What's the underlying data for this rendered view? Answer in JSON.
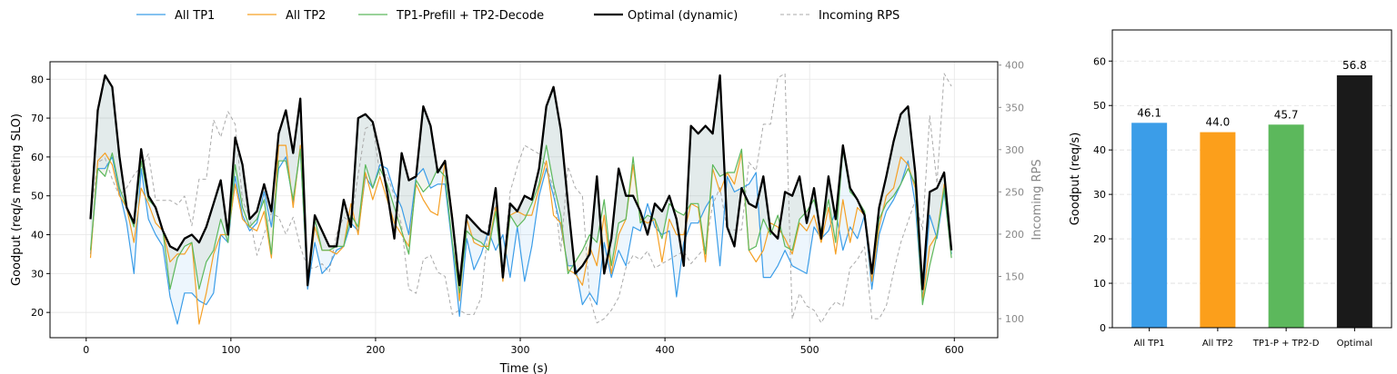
{
  "chart_data": [
    {
      "type": "line",
      "xlabel": "Time (s)",
      "ylabel": "Goodput (req/s meeting SLO)",
      "y2label": "Incoming RPS",
      "xlim": [
        -25,
        630
      ],
      "ylim": [
        13.5,
        84.5
      ],
      "y2lim": [
        77.5,
        404
      ],
      "xticks": [
        0,
        100,
        200,
        300,
        400,
        500,
        600
      ],
      "yticks": [
        20,
        30,
        40,
        50,
        60,
        70,
        80
      ],
      "y2ticks": [
        100,
        150,
        200,
        250,
        300,
        350,
        400
      ],
      "grid": true,
      "legend": "top-outside",
      "x": [
        3,
        8,
        13,
        18,
        23,
        28,
        33,
        38,
        43,
        48,
        53,
        58,
        63,
        68,
        73,
        78,
        83,
        88,
        93,
        98,
        103,
        108,
        113,
        118,
        123,
        128,
        133,
        138,
        143,
        148,
        153,
        158,
        163,
        168,
        173,
        178,
        183,
        188,
        193,
        198,
        203,
        208,
        213,
        218,
        223,
        228,
        233,
        238,
        243,
        248,
        253,
        258,
        263,
        268,
        273,
        278,
        283,
        288,
        293,
        298,
        303,
        308,
        313,
        318,
        323,
        328,
        333,
        338,
        343,
        348,
        353,
        358,
        363,
        368,
        373,
        378,
        383,
        388,
        393,
        398,
        403,
        408,
        413,
        418,
        423,
        428,
        433,
        438,
        443,
        448,
        453,
        458,
        463,
        468,
        473,
        478,
        483,
        488,
        493,
        498,
        503,
        508,
        513,
        518,
        523,
        528,
        533,
        538,
        543,
        548,
        553,
        558,
        563,
        568,
        573,
        578,
        583,
        588,
        593,
        598
      ],
      "series": [
        {
          "name": "All TP1",
          "color": "#3b9de8",
          "width": 1.2,
          "values": [
            35,
            57,
            57,
            60,
            51,
            43,
            30,
            57,
            44,
            40,
            37,
            24,
            17,
            25,
            25,
            23,
            22,
            25,
            40,
            38,
            55,
            45,
            41,
            43,
            51,
            42,
            57,
            60,
            48,
            62,
            26,
            38,
            30,
            32,
            36,
            37,
            43,
            41,
            55,
            52,
            58,
            57,
            51,
            47,
            40,
            55,
            57,
            52,
            53,
            53,
            37,
            19,
            39,
            31,
            35,
            41,
            36,
            40,
            29,
            42,
            28,
            37,
            50,
            57,
            50,
            42,
            32,
            32,
            22,
            25,
            22,
            38,
            29,
            36,
            32,
            42,
            41,
            48,
            42,
            40,
            41,
            24,
            38,
            43,
            43,
            47,
            50,
            32,
            55,
            51,
            52,
            53,
            56,
            29,
            29,
            32,
            36,
            32,
            31,
            30,
            42,
            39,
            41,
            46,
            36,
            42,
            39,
            45,
            26,
            40,
            46,
            49,
            53,
            59,
            48,
            23,
            45,
            39,
            51,
            35
          ]
        },
        {
          "name": "All TP2",
          "color": "#f5a025",
          "width": 1.2,
          "values": [
            34,
            59,
            61,
            58,
            50,
            47,
            38,
            52,
            48,
            43,
            41,
            33,
            35,
            35,
            38,
            17,
            25,
            35,
            40,
            40,
            53,
            44,
            42,
            41,
            46,
            34,
            63,
            63,
            47,
            63,
            27,
            42,
            36,
            36,
            35,
            37,
            48,
            40,
            56,
            49,
            55,
            49,
            43,
            40,
            37,
            53,
            49,
            46,
            45,
            59,
            45,
            23,
            44,
            38,
            37,
            37,
            47,
            28,
            45,
            46,
            45,
            45,
            52,
            59,
            45,
            43,
            31,
            30,
            27,
            37,
            32,
            45,
            30,
            40,
            44,
            58,
            44,
            43,
            44,
            33,
            44,
            40,
            40,
            48,
            47,
            33,
            57,
            51,
            56,
            53,
            61,
            36,
            33,
            36,
            43,
            42,
            39,
            35,
            43,
            41,
            45,
            38,
            47,
            35,
            49,
            38,
            47,
            45,
            28,
            42,
            50,
            52,
            60,
            58,
            52,
            23,
            37,
            40,
            53,
            36
          ]
        },
        {
          "name": "TP1-Prefill + TP2-Decode",
          "color": "#5cb85c",
          "width": 1.2,
          "values": [
            36,
            57,
            55,
            61,
            52,
            47,
            42,
            59,
            49,
            47,
            41,
            26,
            34,
            37,
            38,
            26,
            33,
            36,
            44,
            38,
            58,
            47,
            42,
            44,
            49,
            35,
            59,
            59,
            49,
            62,
            28,
            44,
            36,
            36,
            37,
            37,
            45,
            42,
            58,
            52,
            57,
            53,
            47,
            41,
            35,
            54,
            51,
            53,
            57,
            55,
            38,
            25,
            41,
            39,
            38,
            36,
            46,
            29,
            45,
            42,
            44,
            48,
            53,
            63,
            53,
            45,
            30,
            33,
            36,
            40,
            38,
            49,
            32,
            43,
            44,
            60,
            43,
            45,
            44,
            39,
            48,
            46,
            45,
            48,
            48,
            35,
            58,
            55,
            56,
            56,
            62,
            36,
            37,
            44,
            40,
            45,
            37,
            36,
            44,
            46,
            49,
            41,
            49,
            38,
            62,
            51,
            49,
            46,
            30,
            44,
            48,
            50,
            53,
            57,
            53,
            22,
            32,
            40,
            52,
            34
          ]
        },
        {
          "name": "Optimal (dynamic)",
          "color": "#000000",
          "width": 2.3,
          "values": [
            44,
            72,
            81,
            78,
            60,
            47,
            43,
            62,
            50,
            47,
            41,
            37,
            36,
            39,
            40,
            38,
            42,
            48,
            54,
            40,
            65,
            58,
            44,
            46,
            53,
            46,
            66,
            72,
            61,
            75,
            27,
            45,
            41,
            37,
            37,
            49,
            42,
            70,
            71,
            69,
            61,
            51,
            39,
            61,
            54,
            55,
            73,
            68,
            56,
            59,
            44,
            27,
            45,
            43,
            41,
            40,
            52,
            29,
            48,
            46,
            50,
            49,
            57,
            73,
            78,
            67,
            48,
            30,
            32,
            35,
            55,
            30,
            39,
            57,
            50,
            50,
            46,
            40,
            48,
            46,
            50,
            44,
            32,
            68,
            66,
            68,
            66,
            81,
            42,
            37,
            52,
            48,
            47,
            55,
            41,
            39,
            51,
            50,
            55,
            43,
            52,
            39,
            55,
            44,
            63,
            52,
            49,
            45,
            30,
            47,
            55,
            64,
            71,
            73,
            56,
            26,
            51,
            52,
            56,
            36
          ]
        },
        {
          "name": "Incoming RPS",
          "color": "#aaaaaa",
          "width": 1.0,
          "dashed": true,
          "axis": "right",
          "values": [
            220,
            285,
            290,
            265,
            245,
            255,
            270,
            280,
            295,
            240,
            240,
            240,
            235,
            245,
            210,
            265,
            265,
            335,
            315,
            345,
            330,
            240,
            220,
            175,
            200,
            225,
            220,
            200,
            220,
            185,
            160,
            160,
            165,
            155,
            200,
            220,
            215,
            270,
            325,
            330,
            270,
            270,
            245,
            210,
            135,
            130,
            170,
            175,
            155,
            150,
            105,
            110,
            105,
            105,
            125,
            210,
            235,
            155,
            250,
            280,
            305,
            300,
            295,
            280,
            255,
            180,
            280,
            255,
            245,
            125,
            95,
            100,
            110,
            125,
            160,
            175,
            170,
            180,
            160,
            165,
            170,
            175,
            180,
            165,
            175,
            185,
            235,
            255,
            205,
            205,
            205,
            285,
            275,
            330,
            330,
            385,
            390,
            100,
            130,
            115,
            110,
            95,
            110,
            120,
            115,
            160,
            170,
            185,
            100,
            100,
            115,
            155,
            190,
            215,
            240,
            205,
            340,
            260,
            390,
            375
          ]
        }
      ]
    },
    {
      "type": "bar",
      "categories": [
        "All TP1",
        "All TP2",
        "TP1-P + TP2-D",
        "Optimal"
      ],
      "values": [
        46.1,
        44.0,
        45.7,
        56.8
      ],
      "value_labels": [
        "46.1",
        "44.0",
        "45.7",
        "56.8"
      ],
      "colors": [
        "#3b9de8",
        "#fc9f1b",
        "#5cb85c",
        "#1a1a1a"
      ],
      "ylabel": "Goodput (req/s)",
      "ylim": [
        0,
        67
      ],
      "yticks": [
        0,
        10,
        20,
        30,
        40,
        50,
        60
      ],
      "grid": "y-dashed"
    }
  ]
}
